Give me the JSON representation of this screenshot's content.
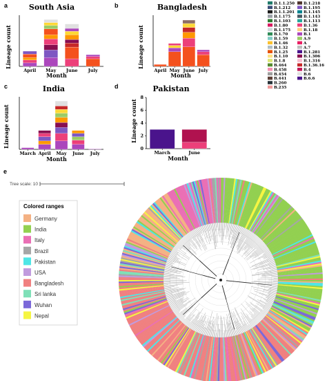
{
  "panel_labels": [
    "a",
    "b",
    "c",
    "d",
    "e"
  ],
  "chart_data": [
    {
      "type": "bar",
      "stacked": true,
      "title": "South Asia",
      "xlabel": "Month",
      "ylabel": "Lineage count",
      "categories": [
        "April",
        "May",
        "June",
        "July"
      ],
      "totals": [
        52,
        160,
        145,
        40
      ],
      "stacks": [
        [
          [
            "B.1",
            12
          ],
          [
            "B.1.36",
            10
          ],
          [
            "B.1.1",
            8
          ],
          [
            "B.1.1.25",
            12
          ],
          [
            "B.6",
            10
          ]
        ],
        [
          [
            "B.1",
            30
          ],
          [
            "B.6",
            26
          ],
          [
            "B.1.1.306",
            18
          ],
          [
            "B.1.36",
            20
          ],
          [
            "B.1.1",
            14
          ],
          [
            "B.1.1.25",
            20
          ],
          [
            "B.1.1.32",
            12
          ],
          [
            "B.1.1.1",
            10
          ],
          [
            "B.1.80",
            10
          ]
        ],
        [
          [
            "B.1.36",
            26
          ],
          [
            "B.1.1.25",
            40
          ],
          [
            "B.1.36.16",
            14
          ],
          [
            "B.1.1.306",
            12
          ],
          [
            "B.1.1",
            16
          ],
          [
            "B.1.1.1",
            12
          ],
          [
            "B.1",
            10
          ],
          [
            "B.1.80",
            15
          ]
        ],
        [
          [
            "B.1.1.25",
            26
          ],
          [
            "B.1.36",
            8
          ],
          [
            "B.1",
            6
          ]
        ]
      ]
    },
    {
      "type": "bar",
      "stacked": true,
      "title": "Bangladesh",
      "xlabel": "Month",
      "ylabel": "Lineage count",
      "categories": [
        "April",
        "May",
        "June",
        "July"
      ],
      "totals": [
        4,
        47,
        95,
        34
      ],
      "stacks": [
        [
          [
            "B.1.1.25",
            4
          ]
        ],
        [
          [
            "B.1.1.25",
            30
          ],
          [
            "B.1",
            8
          ],
          [
            "B.1.1.1",
            5
          ],
          [
            "B.1.36",
            4
          ]
        ],
        [
          [
            "B.1.1.25",
            40
          ],
          [
            "B.1.36",
            18
          ],
          [
            "B.1.1",
            12
          ],
          [
            "B.1.36.16",
            10
          ],
          [
            "B.1.1.1",
            8
          ],
          [
            "A.9",
            7
          ]
        ],
        [
          [
            "B.1.1.25",
            24
          ],
          [
            "B.1.36",
            6
          ],
          [
            "B.1",
            4
          ]
        ]
      ]
    },
    {
      "type": "bar",
      "stacked": true,
      "title": "India",
      "xlabel": "Month",
      "ylabel": "Lineage count",
      "categories": [
        "March",
        "April",
        "May",
        "June",
        "July"
      ],
      "totals": [
        4,
        45,
        115,
        45,
        1
      ],
      "stacks": [
        [
          [
            "B.1",
            4
          ]
        ],
        [
          [
            "B.1",
            12
          ],
          [
            "B.1.1",
            8
          ],
          [
            "B.6",
            10
          ],
          [
            "B.1.36",
            8
          ],
          [
            "B.1.1.306",
            7
          ]
        ],
        [
          [
            "B.1",
            20
          ],
          [
            "B.1.36",
            18
          ],
          [
            "B.6",
            14
          ],
          [
            "B.1.1.306",
            12
          ],
          [
            "B.1.1",
            12
          ],
          [
            "B.1.1.32",
            10
          ],
          [
            "B.1.1.1",
            9
          ],
          [
            "B.1.36.16",
            8
          ],
          [
            "B.1.80",
            12
          ]
        ],
        [
          [
            "B.1",
            12
          ],
          [
            "B.1.36",
            10
          ],
          [
            "B.1.1.32",
            8
          ],
          [
            "B.6",
            8
          ],
          [
            "B.1.1",
            7
          ]
        ],
        [
          [
            "B.1",
            1
          ]
        ]
      ]
    },
    {
      "type": "bar",
      "stacked": true,
      "title": "Pakistan",
      "xlabel": "Month",
      "ylabel": "Lineage count",
      "categories": [
        "March",
        "June"
      ],
      "ylim": [
        0,
        8
      ],
      "yticks": [
        0,
        2,
        4,
        6,
        8
      ],
      "stacks": [
        [
          [
            "B.6.6",
            3
          ]
        ],
        [
          [
            "B.1.36",
            1
          ],
          [
            "B.4",
            2
          ]
        ]
      ]
    }
  ],
  "legend": [
    {
      "name": "B.1.1.250",
      "color": "#1f7a6a"
    },
    {
      "name": "B.1.212",
      "color": "#3d4f7a"
    },
    {
      "name": "B.1.1.201",
      "color": "#1b1b1b"
    },
    {
      "name": "B.1.175",
      "color": "#9aa0a6"
    },
    {
      "name": "B.1.103",
      "color": "#2e7d32"
    },
    {
      "name": "B.1.80",
      "color": "#d81b60"
    },
    {
      "name": "B.1.175",
      "color": "#cfd8dc"
    },
    {
      "name": "B.1.70",
      "color": "#2e8b57"
    },
    {
      "name": "B.1.59",
      "color": "#80cbc4"
    },
    {
      "name": "B.1.46",
      "color": "#fbc02d"
    },
    {
      "name": "B.1.32",
      "color": "#b0bec5"
    },
    {
      "name": "B.1.25",
      "color": "#e65100"
    },
    {
      "name": "B.1.10",
      "color": "#ffe082"
    },
    {
      "name": "B.1.8",
      "color": "#dce775"
    },
    {
      "name": "B.464",
      "color": "#558b2f"
    },
    {
      "name": "B.458",
      "color": "#f48fb1"
    },
    {
      "name": "B.454",
      "color": "#9e9e9e"
    },
    {
      "name": "B.441",
      "color": "#5d4037"
    },
    {
      "name": "B.260",
      "color": "#263238"
    },
    {
      "name": "B.235",
      "color": "#ef9a9a"
    },
    {
      "name": "B.1.218",
      "color": "#4e342e"
    },
    {
      "name": "B.1.195",
      "color": "#7e57c2"
    },
    {
      "name": "B.1.145",
      "color": "#00838f"
    },
    {
      "name": "B.1.143",
      "color": "#455a64"
    },
    {
      "name": "B.1.113",
      "color": "#26a69a"
    },
    {
      "name": "B.1.36",
      "color": "#ec407a"
    },
    {
      "name": "B.1.18",
      "color": "#ffcc80"
    },
    {
      "name": "B.1",
      "color": "#ab47bc"
    },
    {
      "name": "A.9",
      "color": "#9ccc65"
    },
    {
      "name": "A",
      "color": "#e91e63"
    },
    {
      "name": "A.7",
      "color": "#bdbdbd"
    },
    {
      "name": "B.1.281",
      "color": "#4a148c"
    },
    {
      "name": "B.1.306",
      "color": "#880e4f"
    },
    {
      "name": "B.1.316",
      "color": "#f8bbd0"
    },
    {
      "name": "B.1.36.16",
      "color": "#c62828"
    },
    {
      "name": "B.4",
      "color": "#c2185b"
    },
    {
      "name": "B.6",
      "color": "#e0e0e0"
    },
    {
      "name": "B.6.6",
      "color": "#4a148c"
    }
  ],
  "segment_colors": {
    "B.1": "#ab47bc",
    "B.1.36": "#ec407a",
    "B.1.1": "#ff9800",
    "B.1.1.25": "#f4511e",
    "B.6": "#7e57c2",
    "B.1.1.306": "#880e4f",
    "B.1.1.32": "#9ccc65",
    "B.1.1.1": "#fdd835",
    "B.1.80": "#e0e0e0",
    "B.1.36.16": "#c62828",
    "A.9": "#8d6e63",
    "B.6.6": "#4a148c",
    "B.4": "#b0124f"
  },
  "tree": {
    "scale_label": "Tree scale: 10",
    "ranges_title": "Colored ranges",
    "ranges": [
      {
        "name": "Germany",
        "color": "#f4b183"
      },
      {
        "name": "India",
        "color": "#92d050"
      },
      {
        "name": "Italy",
        "color": "#ea6fb5"
      },
      {
        "name": "Brazil",
        "color": "#a6a6a6"
      },
      {
        "name": "Pakistan",
        "color": "#4ee6e6"
      },
      {
        "name": "USA",
        "color": "#c19bde"
      },
      {
        "name": "Bangladesh",
        "color": "#f08080"
      },
      {
        "name": "Sri lanka",
        "color": "#7fe0b8"
      },
      {
        "name": "Wuhan",
        "color": "#7b68d9"
      },
      {
        "name": "Nepal",
        "color": "#f5f542"
      }
    ]
  }
}
